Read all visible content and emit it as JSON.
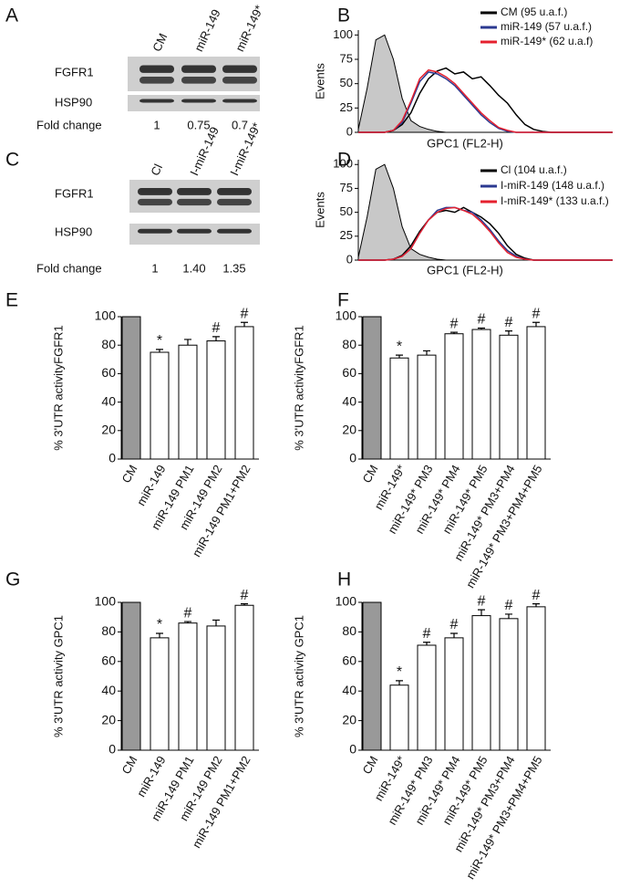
{
  "chart_data": [
    {
      "type": "blot",
      "panel": "A",
      "lanes": [
        "CM",
        "miR-149",
        "miR-149*"
      ],
      "rows": [
        "FGFR1",
        "HSP90"
      ],
      "row_label": "Fold change",
      "values": [
        1,
        0.75,
        0.7
      ]
    },
    {
      "type": "flow",
      "panel": "B",
      "ylabel": "Events",
      "xlabel": "GPC1 (FL2-H)",
      "ylim": [
        0,
        105
      ],
      "yticks": [
        0,
        25,
        50,
        75,
        100
      ],
      "series": [
        {
          "color": "#c8c8c8",
          "values": [
            3,
            45,
            95,
            100,
            75,
            35,
            12,
            6,
            3,
            1,
            0,
            0,
            0,
            0,
            0,
            0,
            0,
            0,
            0,
            0,
            0,
            0,
            0,
            0,
            0,
            0,
            0,
            0,
            0,
            0
          ]
        },
        {
          "name": "CM (95 u.a.f.)",
          "color": "#000000",
          "values": [
            0,
            0,
            0,
            0,
            2,
            8,
            20,
            40,
            55,
            63,
            66,
            60,
            62,
            55,
            57,
            48,
            38,
            30,
            18,
            8,
            3,
            1,
            0,
            0,
            0,
            0,
            0,
            0,
            0,
            0
          ]
        },
        {
          "name": "miR-149 (57 u.a.f.)",
          "color": "#2b3990",
          "values": [
            0,
            0,
            0,
            0,
            2,
            10,
            30,
            52,
            62,
            60,
            55,
            48,
            38,
            28,
            18,
            10,
            4,
            1,
            0,
            0,
            0,
            0,
            0,
            0,
            0,
            0,
            0,
            0,
            0,
            0
          ]
        },
        {
          "name": "miR-149* (62 u.a.f)",
          "color": "#e5202e",
          "values": [
            0,
            0,
            0,
            0,
            2,
            12,
            32,
            55,
            64,
            62,
            57,
            50,
            40,
            30,
            20,
            12,
            5,
            2,
            0,
            0,
            0,
            0,
            0,
            0,
            0,
            0,
            0,
            0,
            0,
            0
          ]
        }
      ]
    },
    {
      "type": "blot",
      "panel": "C",
      "lanes": [
        "Cl",
        "I-miR-149",
        "I-miR-149*"
      ],
      "rows": [
        "FGFR1",
        "HSP90"
      ],
      "row_label": "Fold change",
      "values": [
        1,
        1.4,
        1.35
      ],
      "value_labels": [
        "1",
        "1.40",
        "1.35"
      ]
    },
    {
      "type": "flow",
      "panel": "D",
      "ylabel": "Events",
      "xlabel": "GPC1 (FL2-H)",
      "ylim": [
        0,
        105
      ],
      "yticks": [
        0,
        25,
        50,
        75,
        100
      ],
      "series": [
        {
          "color": "#c8c8c8",
          "values": [
            3,
            45,
            95,
            100,
            75,
            35,
            12,
            6,
            3,
            1,
            0,
            0,
            0,
            0,
            0,
            0,
            0,
            0,
            0,
            0,
            0,
            0,
            0,
            0,
            0,
            0,
            0,
            0,
            0,
            0
          ]
        },
        {
          "name": "Cl (104 u.a.f.)",
          "color": "#000000",
          "values": [
            0,
            0,
            0,
            0,
            1,
            5,
            15,
            30,
            42,
            50,
            52,
            50,
            55,
            50,
            45,
            38,
            28,
            15,
            6,
            2,
            0,
            0,
            0,
            0,
            0,
            0,
            0,
            0,
            0,
            0
          ]
        },
        {
          "name": "I-miR-149 (148 u.a.f.)",
          "color": "#2b3990",
          "values": [
            0,
            0,
            0,
            0,
            1,
            4,
            12,
            28,
            42,
            52,
            55,
            55,
            52,
            50,
            42,
            32,
            20,
            10,
            4,
            1,
            0,
            0,
            0,
            0,
            0,
            0,
            0,
            0,
            0,
            0
          ]
        },
        {
          "name": "I-miR-149* (133 u.a.f.)",
          "color": "#e5202e",
          "values": [
            0,
            0,
            0,
            0,
            1,
            4,
            12,
            28,
            42,
            50,
            54,
            55,
            52,
            48,
            40,
            30,
            18,
            8,
            3,
            1,
            0,
            0,
            0,
            0,
            0,
            0,
            0,
            0,
            0,
            0
          ]
        }
      ]
    },
    {
      "type": "bar",
      "panel": "E",
      "ylabel": "% 3'UTR activityFGFR1",
      "ylim": [
        0,
        100
      ],
      "yticks": [
        0,
        20,
        40,
        60,
        80,
        100
      ],
      "categories": [
        "CM",
        "miR-149",
        "miR-149 PM1",
        "miR-149 PM2",
        "miR-149 PM1+PM2"
      ],
      "values": [
        100,
        75,
        80,
        83,
        93
      ],
      "errors": [
        null,
        2,
        4,
        3,
        3
      ],
      "annotations": [
        null,
        "*",
        null,
        "#",
        "#"
      ],
      "colors": [
        "#999999",
        "#ffffff",
        "#ffffff",
        "#ffffff",
        "#ffffff"
      ]
    },
    {
      "type": "bar",
      "panel": "F",
      "ylabel": "% 3'UTR activityFGFR1",
      "ylim": [
        0,
        100
      ],
      "yticks": [
        0,
        20,
        40,
        60,
        80,
        100
      ],
      "categories": [
        "CM",
        "miR-149*",
        "miR-149* PM3",
        "miR-149* PM4",
        "miR-149* PM5",
        "miR-149* PM3+PM4",
        "miR-149* PM3+PM4+PM5"
      ],
      "values": [
        100,
        71,
        73,
        88,
        91,
        87,
        93
      ],
      "errors": [
        null,
        2,
        3,
        1,
        1,
        3,
        3
      ],
      "annotations": [
        null,
        "*",
        null,
        "#",
        "#",
        "#",
        "#"
      ],
      "colors": [
        "#999999",
        "#ffffff",
        "#ffffff",
        "#ffffff",
        "#ffffff",
        "#ffffff",
        "#ffffff"
      ]
    },
    {
      "type": "bar",
      "panel": "G",
      "ylabel": "% 3'UTR activity GPC1",
      "ylim": [
        0,
        100
      ],
      "yticks": [
        0,
        20,
        40,
        60,
        80,
        100
      ],
      "categories": [
        "CM",
        "miR-149",
        "miR-149 PM1",
        "miR-149 PM2",
        "miR-149 PM1+PM2"
      ],
      "values": [
        100,
        76,
        86,
        84,
        98
      ],
      "errors": [
        null,
        3,
        1,
        4,
        1
      ],
      "annotations": [
        null,
        "*",
        "#",
        null,
        "#"
      ],
      "colors": [
        "#999999",
        "#ffffff",
        "#ffffff",
        "#ffffff",
        "#ffffff"
      ]
    },
    {
      "type": "bar",
      "panel": "H",
      "ylabel": "% 3'UTR activity GPC1",
      "ylim": [
        0,
        100
      ],
      "yticks": [
        0,
        20,
        40,
        60,
        80,
        100
      ],
      "categories": [
        "CM",
        "miR-149*",
        "miR-149* PM3",
        "miR-149* PM4",
        "miR-149* PM5",
        "miR-149* PM3+PM4",
        "miR-149* PM3+PM4+PM5"
      ],
      "values": [
        100,
        44,
        71,
        76,
        91,
        89,
        97
      ],
      "errors": [
        null,
        3,
        2,
        3,
        4,
        3,
        2
      ],
      "annotations": [
        null,
        "*",
        "#",
        "#",
        "#",
        "#",
        "#"
      ],
      "colors": [
        "#999999",
        "#ffffff",
        "#ffffff",
        "#ffffff",
        "#ffffff",
        "#ffffff",
        "#ffffff"
      ]
    }
  ]
}
